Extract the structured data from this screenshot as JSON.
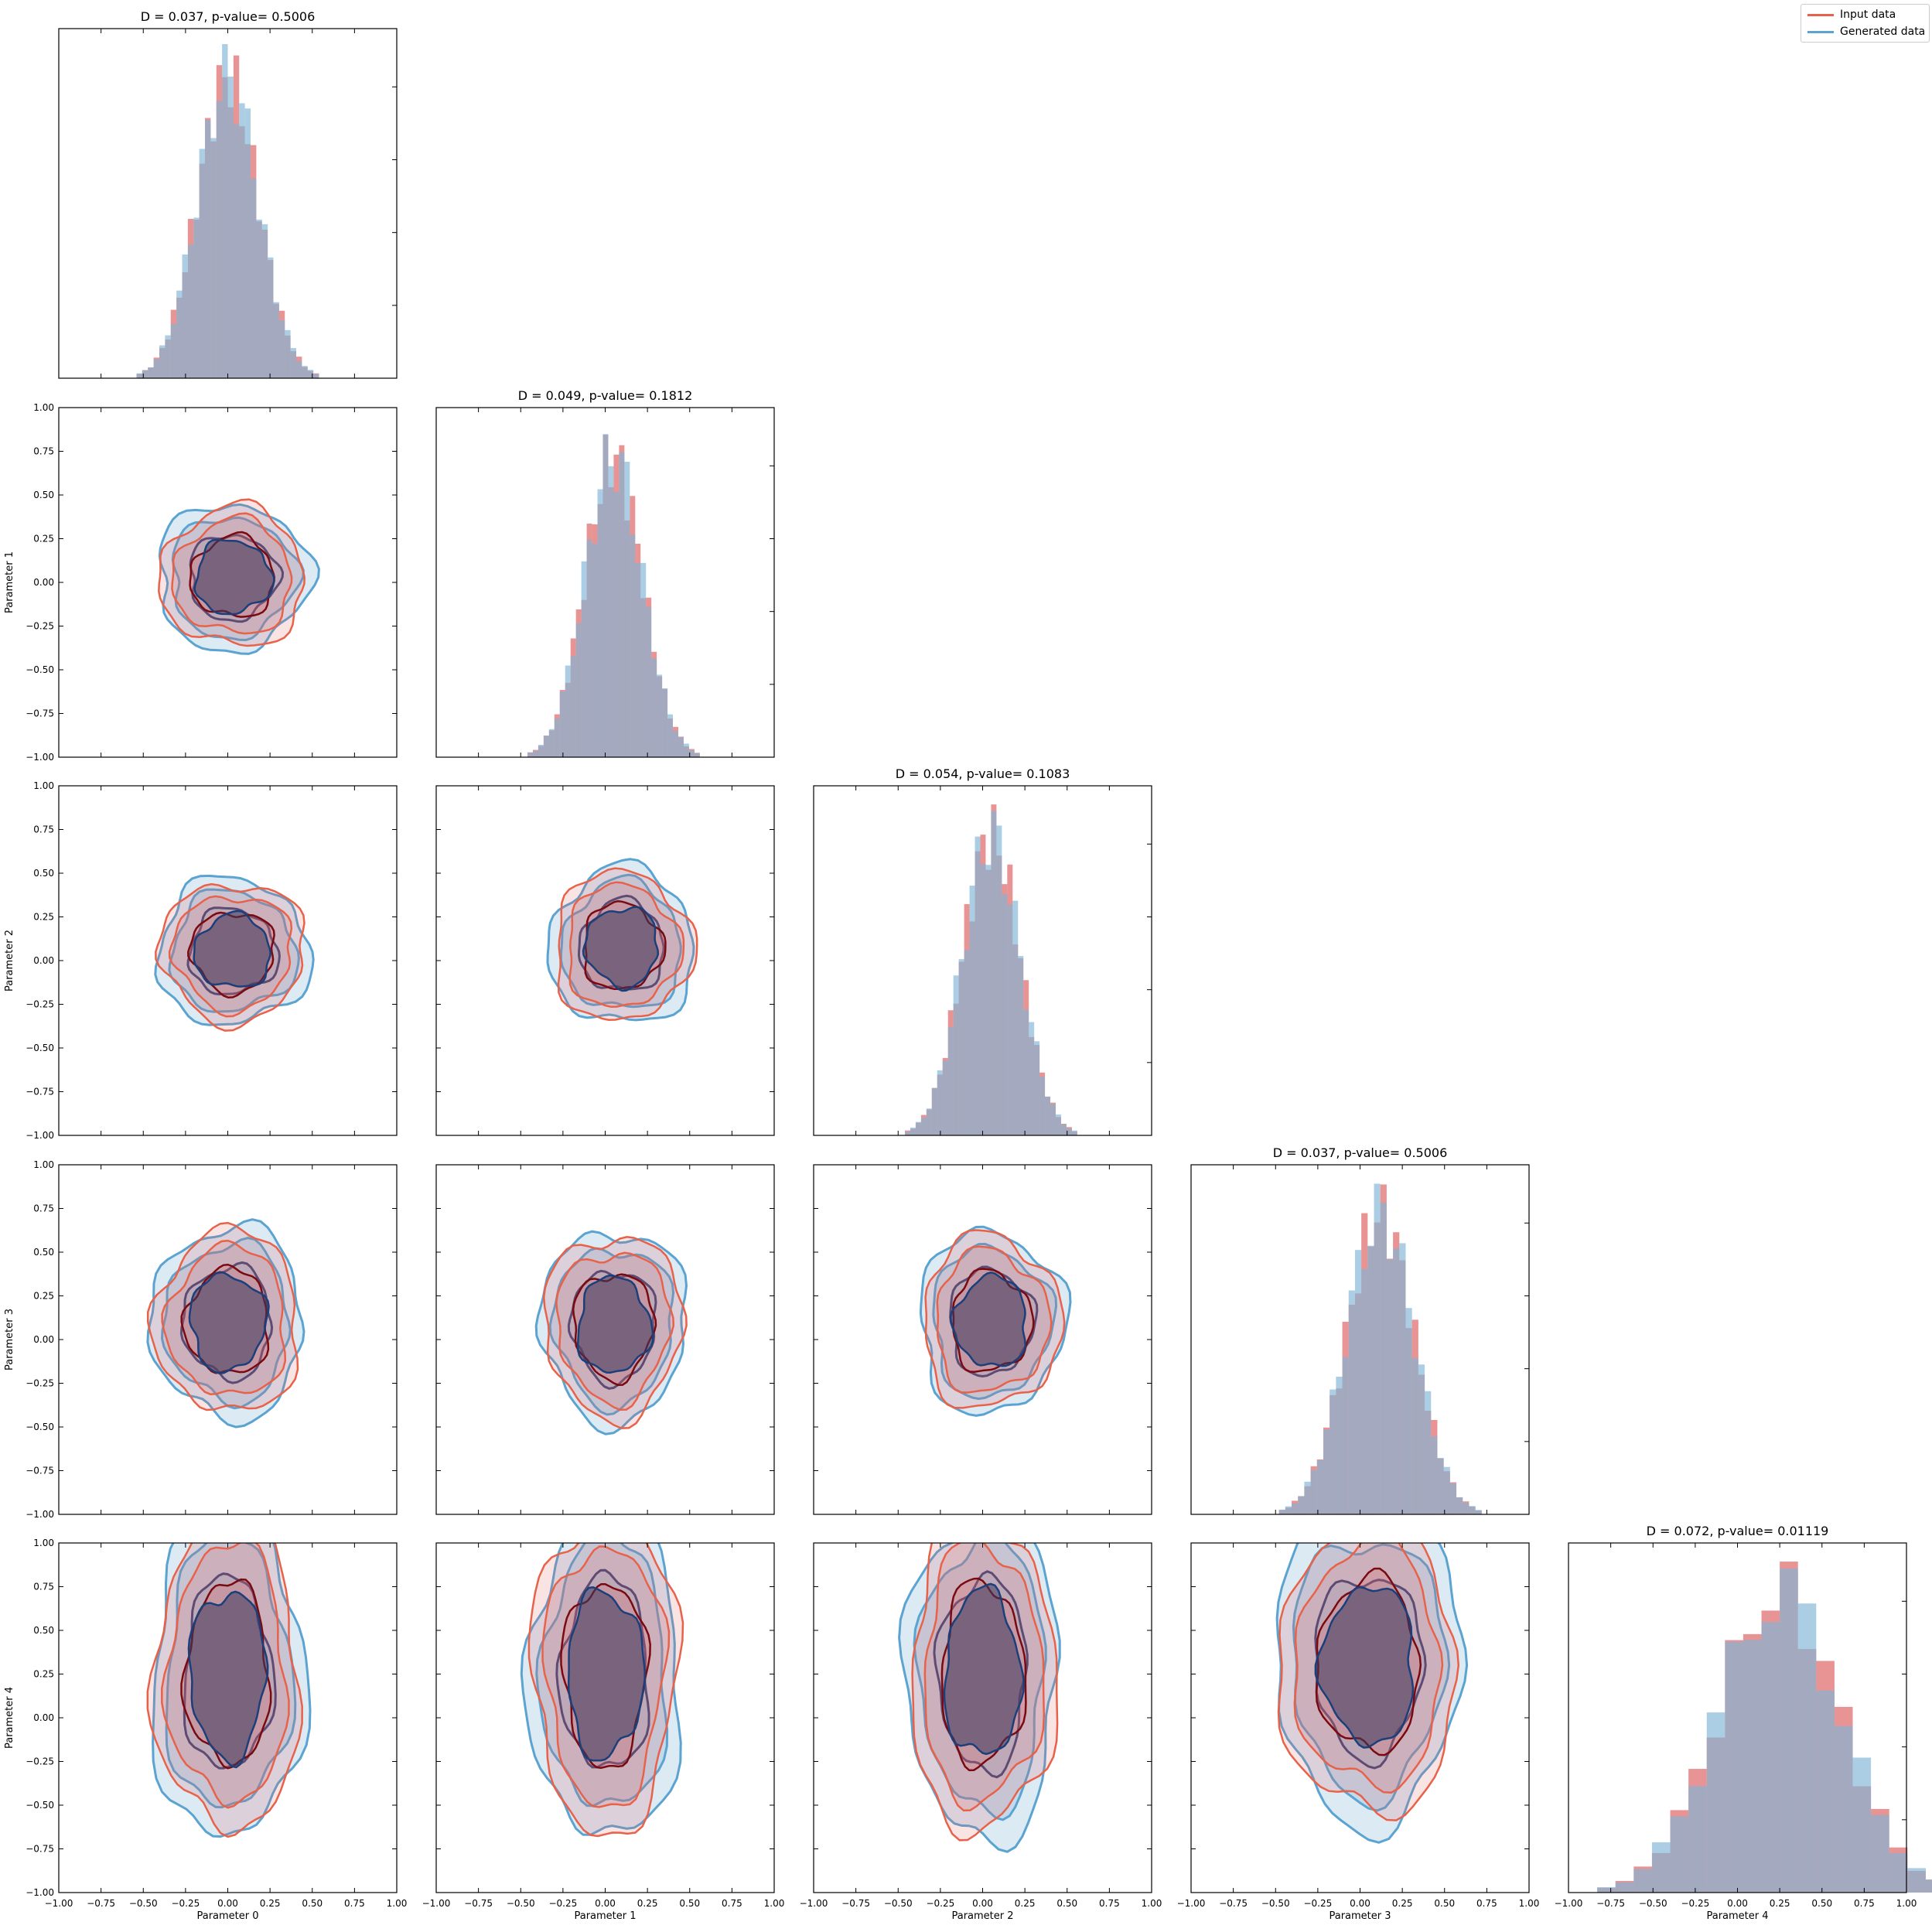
{
  "colors": {
    "input": "#e8624a",
    "input_fill": "#e06666",
    "input_dark": "#7a0a10",
    "generated": "#5ba3d0",
    "generated_fill": "#7eb3d6",
    "generated_dark": "#1a3f7a",
    "overlap": "#6b6b8f"
  },
  "legend": [
    {
      "label": "Input data",
      "color": "#e8624a"
    },
    {
      "label": "Generated data",
      "color": "#5ba3d0"
    }
  ],
  "chart_data": {
    "type": "corner",
    "parameters": [
      "Parameter 0",
      "Parameter 1",
      "Parameter 2",
      "Parameter 3",
      "Parameter 4"
    ],
    "axis_range": [
      -1.0,
      1.0
    ],
    "ticks": [
      "−1.00",
      "−0.75",
      "−0.50",
      "−0.25",
      "0.00",
      "0.25",
      "0.50",
      "0.75",
      "1.00"
    ],
    "legend_position": "top-right",
    "grid": false,
    "diagonal": [
      {
        "title": "D = 0.037, p-value= 0.5006",
        "mean": 0.0,
        "sd": 0.18
      },
      {
        "title": "D = 0.049, p-value= 0.1812",
        "mean": 0.05,
        "sd": 0.17
      },
      {
        "title": "D = 0.054, p-value= 0.1083",
        "mean": 0.05,
        "sd": 0.17
      },
      {
        "title": "D = 0.037, p-value= 0.5006",
        "mean": 0.12,
        "sd": 0.2
      },
      {
        "title": "D = 0.072, p-value= 0.01119",
        "mean": 0.25,
        "sd": 0.36
      }
    ],
    "pairs": [
      {
        "x": 0,
        "y": 1,
        "cx": 0.03,
        "cy": 0.03,
        "rx": 0.45,
        "ry": 0.42
      },
      {
        "x": 0,
        "y": 2,
        "cx": 0.03,
        "cy": 0.05,
        "rx": 0.45,
        "ry": 0.42
      },
      {
        "x": 1,
        "y": 2,
        "cx": 0.1,
        "cy": 0.08,
        "rx": 0.43,
        "ry": 0.45
      },
      {
        "x": 0,
        "y": 3,
        "cx": 0.0,
        "cy": 0.1,
        "rx": 0.45,
        "ry": 0.55
      },
      {
        "x": 1,
        "y": 3,
        "cx": 0.05,
        "cy": 0.08,
        "rx": 0.43,
        "ry": 0.55
      },
      {
        "x": 2,
        "y": 3,
        "cx": 0.05,
        "cy": 0.1,
        "rx": 0.43,
        "ry": 0.52
      },
      {
        "x": 0,
        "y": 4,
        "cx": 0.0,
        "cy": 0.25,
        "rx": 0.45,
        "ry": 0.95
      },
      {
        "x": 1,
        "y": 4,
        "cx": 0.0,
        "cy": 0.25,
        "rx": 0.45,
        "ry": 0.95
      },
      {
        "x": 2,
        "y": 4,
        "cx": 0.0,
        "cy": 0.25,
        "rx": 0.45,
        "ry": 0.95
      },
      {
        "x": 3,
        "y": 4,
        "cx": 0.05,
        "cy": 0.3,
        "rx": 0.55,
        "ry": 0.9
      }
    ]
  }
}
